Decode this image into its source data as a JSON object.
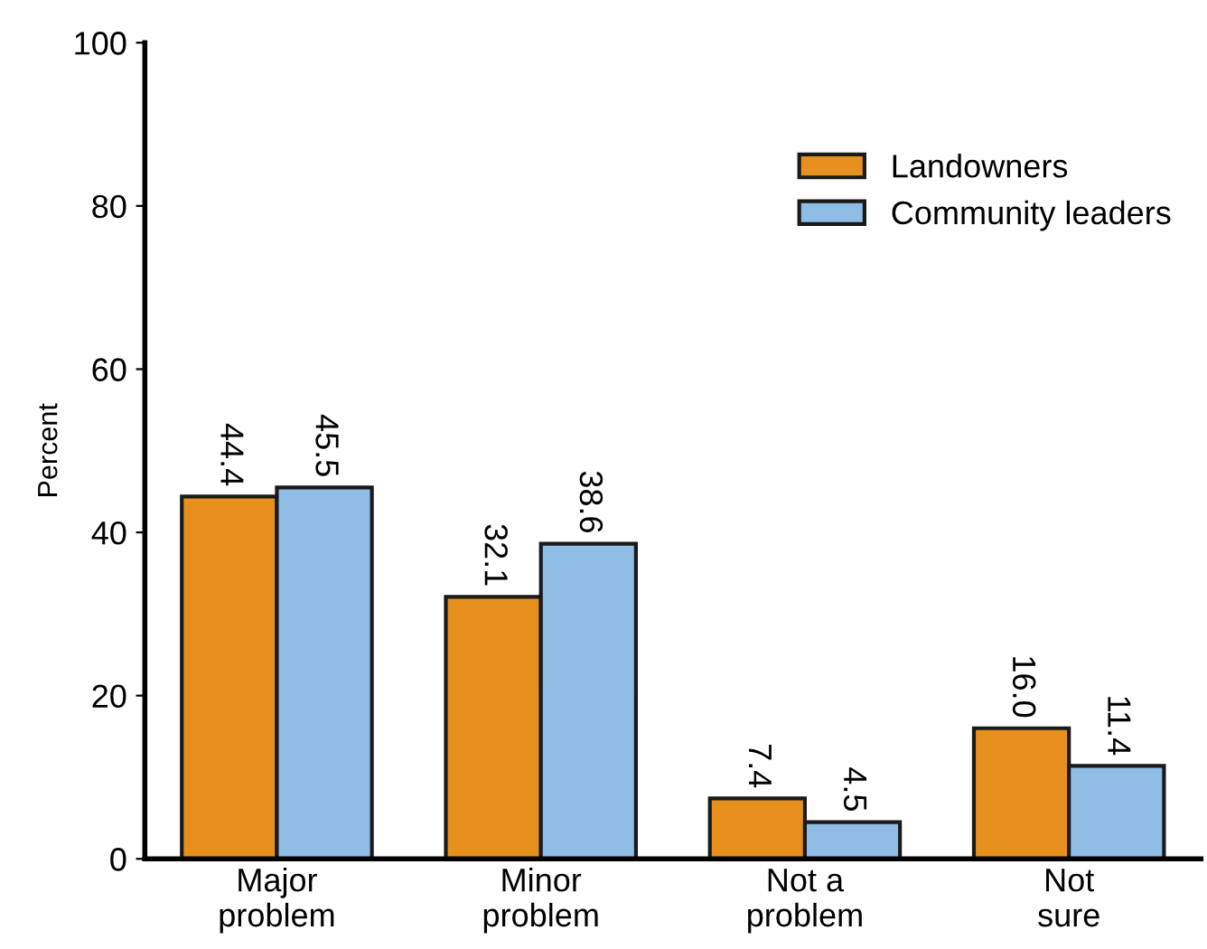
{
  "chart_data": {
    "type": "bar",
    "ylabel": "Percent",
    "categories": [
      "Major\nproblem",
      "Minor\nproblem",
      "Not a\nproblem",
      "Not\nsure"
    ],
    "series": [
      {
        "name": "Landowners",
        "color": "#e8901e",
        "values": [
          44.4,
          32.1,
          7.4,
          16.0
        ],
        "value_labels": [
          "44.4",
          "32.1",
          "7.4",
          "16.0"
        ]
      },
      {
        "name": "Community leaders",
        "color": "#8fbde6",
        "values": [
          45.5,
          38.6,
          4.5,
          11.4
        ],
        "value_labels": [
          "45.5",
          "38.6",
          "4.5",
          "11.4"
        ]
      }
    ],
    "ylim": [
      0,
      100
    ],
    "yticks": [
      0,
      20,
      40,
      60,
      80,
      100
    ],
    "grid": false,
    "legend": "top right"
  }
}
